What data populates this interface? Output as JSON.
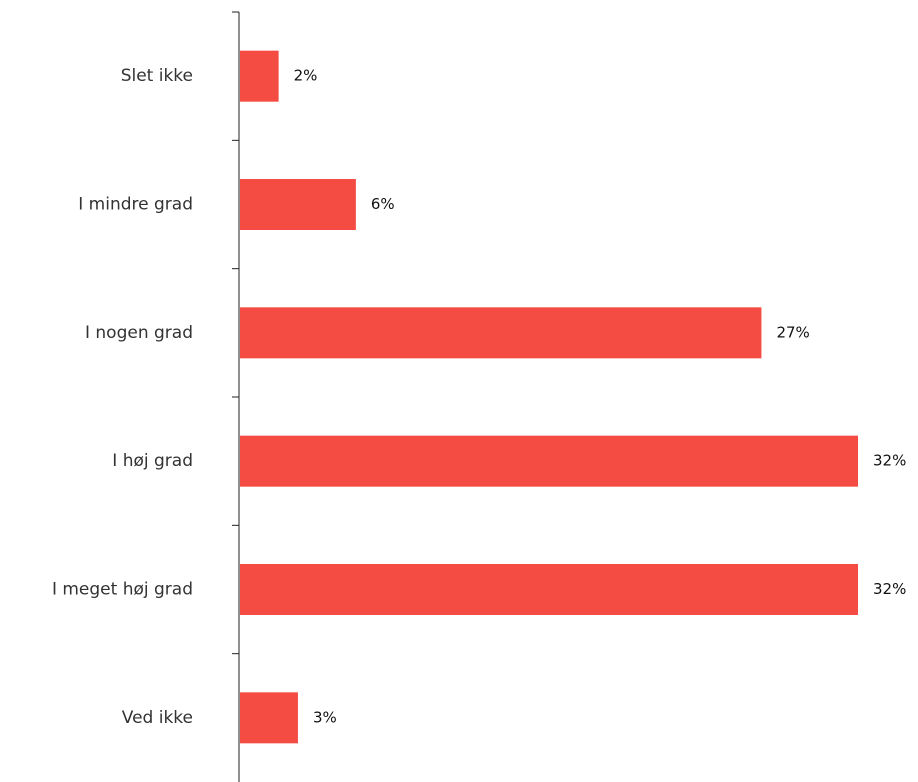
{
  "chart_data": {
    "type": "bar",
    "orientation": "horizontal",
    "categories": [
      "Slet ikke",
      "I mindre grad",
      "I nogen grad",
      "I høj grad",
      "I meget høj grad",
      "Ved ikke"
    ],
    "values": [
      2,
      6,
      27,
      32,
      32,
      3
    ],
    "value_labels": [
      "2%",
      "6%",
      "27%",
      "32%",
      "32%",
      "3%"
    ],
    "unit": "%",
    "xlim": [
      0,
      32
    ],
    "grid": false,
    "legend": "none",
    "bar_color": "#f44b42",
    "title": "",
    "xlabel": "",
    "ylabel": ""
  }
}
